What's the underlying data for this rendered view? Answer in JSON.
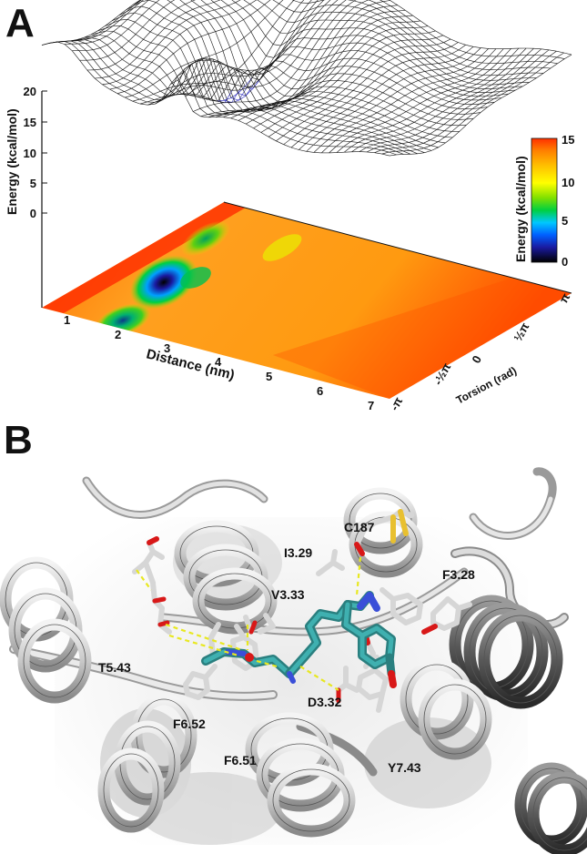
{
  "panels": {
    "a": {
      "letter": "A"
    },
    "b": {
      "letter": "B"
    }
  },
  "chart_data": {
    "type": "heatmap",
    "title": "",
    "z_axis": {
      "label": "Energy (kcal/mol)",
      "ticks": [
        "0",
        "5",
        "10",
        "15",
        "20"
      ],
      "range": [
        0,
        20
      ]
    },
    "x_axis": {
      "label": "Distance (nm)",
      "ticks": [
        "1",
        "2",
        "3",
        "4",
        "5",
        "6",
        "7"
      ],
      "range": [
        0.8,
        7
      ]
    },
    "y_axis": {
      "label": "Torsion (rad)",
      "ticks": [
        "-π",
        "-½π",
        "0",
        "½π",
        "π"
      ],
      "range": [
        -3.1416,
        3.1416
      ]
    },
    "colorbar": {
      "label": "Energy (kcal/mol)",
      "ticks": [
        "0",
        "5",
        "10",
        "15"
      ],
      "range": [
        0,
        15
      ],
      "colors": [
        "#000000",
        "#1a1aa0",
        "#0060ff",
        "#00c8ff",
        "#00d040",
        "#80e000",
        "#ffff00",
        "#ffc000",
        "#ff8000",
        "#ff2a00"
      ]
    },
    "global_minimum": {
      "distance": 3.0,
      "energy": 0
    },
    "local_minima": [
      {
        "distance": 2.3,
        "energy": 2.5
      },
      {
        "distance": 3.3,
        "energy": 3
      },
      {
        "distance": 3.8,
        "energy": 6
      }
    ]
  },
  "molecular_view": {
    "residue_labels": [
      "C187",
      "I3.29",
      "F3.28",
      "V3.33",
      "T5.43",
      "D3.32",
      "F6.52",
      "F6.51",
      "Y7.43"
    ]
  }
}
